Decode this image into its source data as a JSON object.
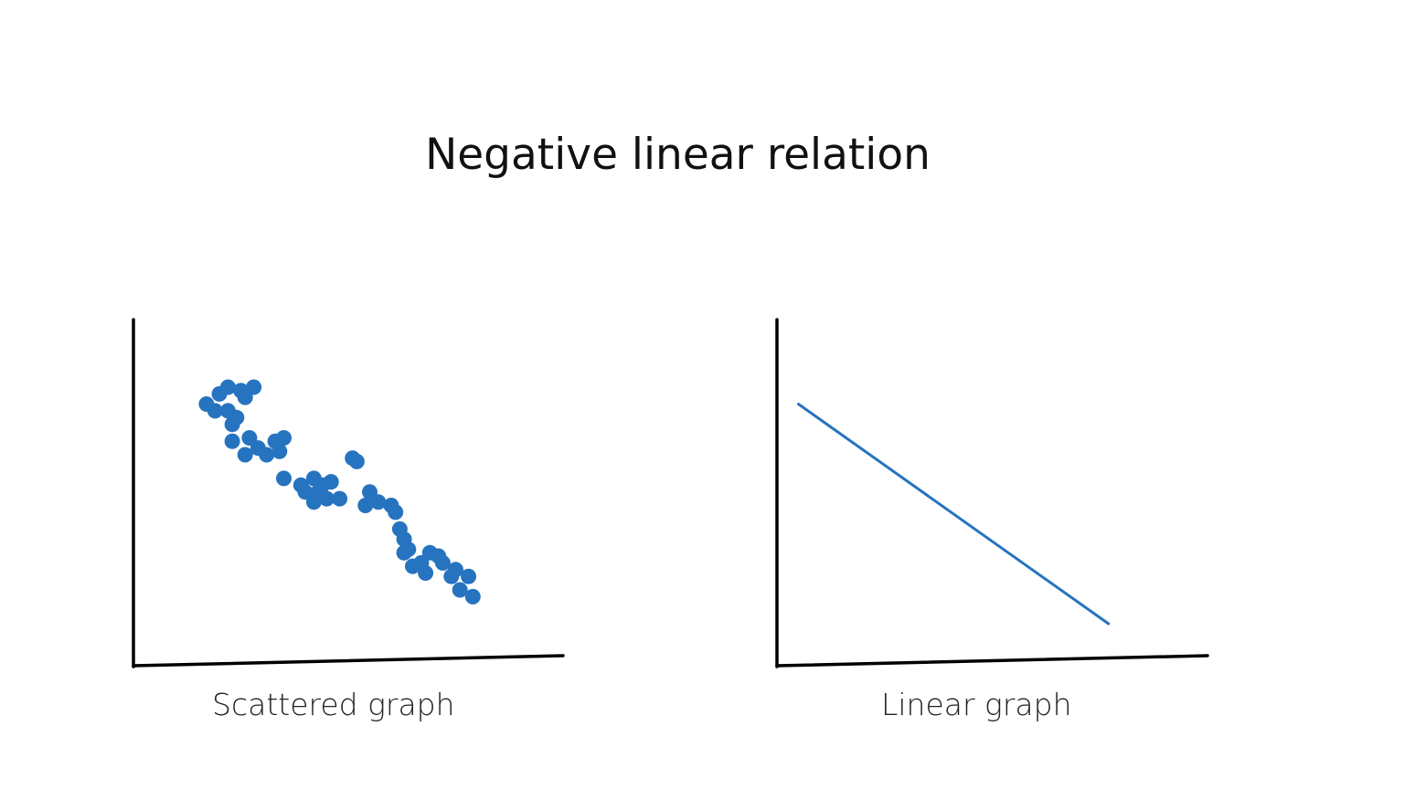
{
  "title": "Negative linear relation",
  "colors": {
    "series": "#2673bf",
    "axis": "#000000",
    "text": "#111111"
  },
  "chart_data": [
    {
      "type": "scatter",
      "title": "",
      "caption": "Scattered graph",
      "xlabel": "",
      "ylabel": "",
      "xlim": [
        0,
        100
      ],
      "ylim": [
        0,
        100
      ],
      "grid": false,
      "x": [
        17,
        19,
        20,
        22,
        22,
        23,
        23,
        24,
        25,
        26,
        26,
        27,
        28,
        29,
        31,
        33,
        34,
        35,
        35,
        39,
        40,
        42,
        42,
        43,
        44,
        45,
        46,
        48,
        51,
        52,
        54,
        55,
        57,
        60,
        61,
        62,
        63,
        63,
        64,
        65,
        67,
        68,
        69,
        71,
        72,
        74,
        75,
        76,
        78,
        79
      ],
      "y": [
        75,
        73,
        78,
        80,
        73,
        69,
        64,
        71,
        79,
        77,
        60,
        65,
        80,
        62,
        60,
        64,
        61,
        53,
        65,
        51,
        49,
        53,
        46,
        49,
        51,
        47,
        52,
        47,
        59,
        58,
        45,
        49,
        46,
        45,
        43,
        38,
        31,
        35,
        32,
        27,
        28,
        25,
        31,
        30,
        28,
        24,
        26,
        20,
        24,
        18
      ]
    },
    {
      "type": "line",
      "title": "",
      "caption": "Linear graph",
      "xlabel": "",
      "ylabel": "",
      "xlim": [
        0,
        100
      ],
      "ylim": [
        0,
        100
      ],
      "grid": false,
      "x": [
        5,
        77
      ],
      "y": [
        75,
        10
      ]
    }
  ]
}
